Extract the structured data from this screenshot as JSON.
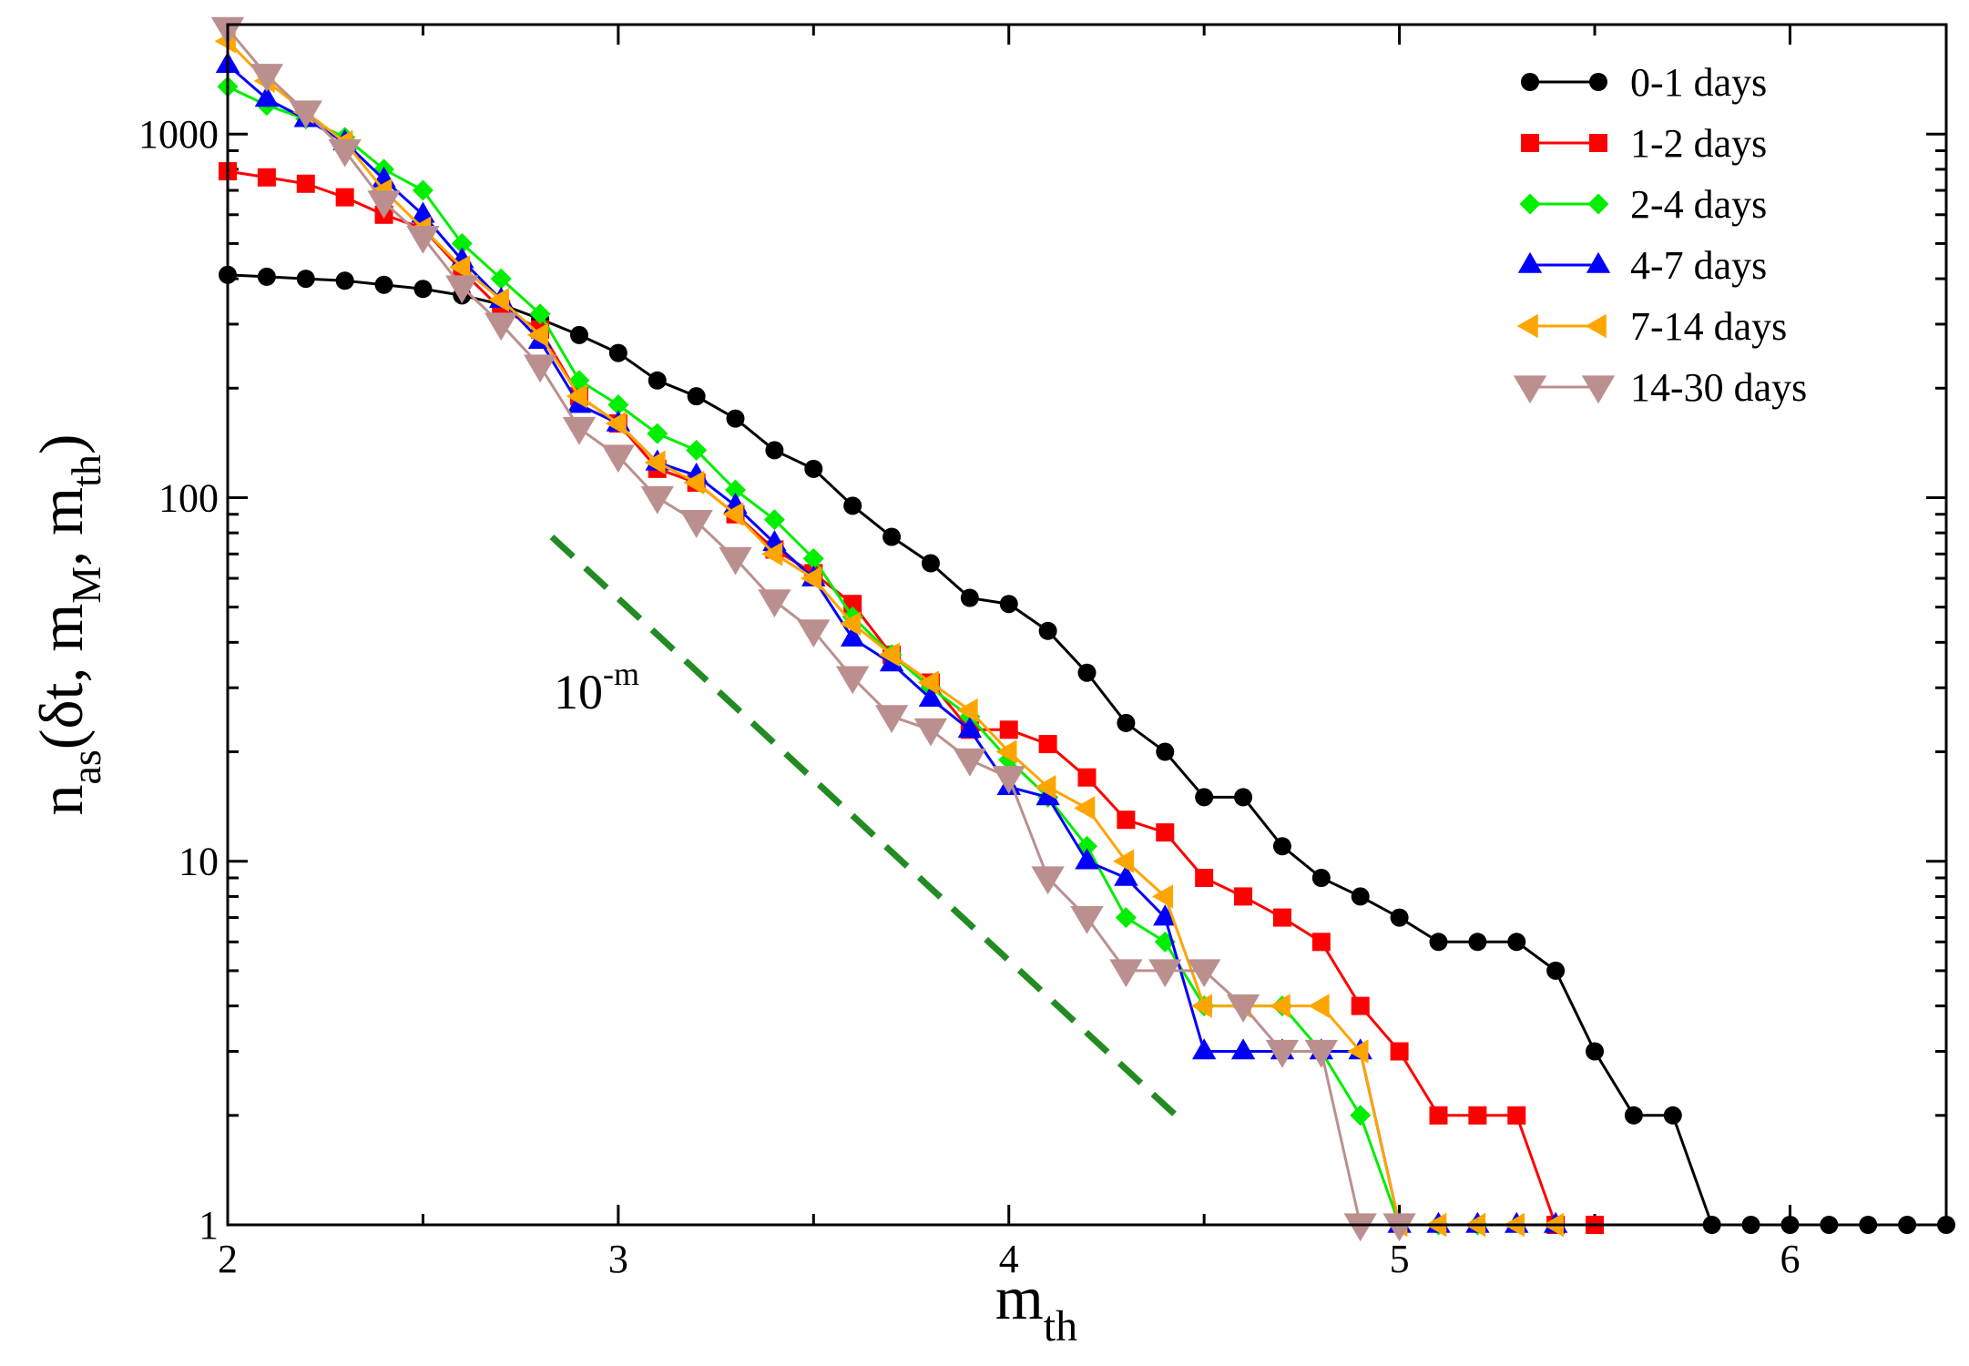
{
  "chart_data": {
    "type": "line",
    "xscale": "linear",
    "yscale": "log",
    "xlim": [
      2,
      6.4
    ],
    "ylim": [
      1,
      2000
    ],
    "xlabel": "m",
    "xlabel_sub": "th",
    "ylabel_parts": [
      {
        "text": "n",
        "role": "normal"
      },
      {
        "text": "as",
        "role": "sub"
      },
      {
        "text": "(δt, m",
        "role": "normal"
      },
      {
        "text": "M",
        "role": "sub"
      },
      {
        "text": ", m",
        "role": "normal"
      },
      {
        "text": "th",
        "role": "sub"
      },
      {
        "text": ")",
        "role": "normal"
      }
    ],
    "xticks": [
      2,
      3,
      4,
      5,
      6
    ],
    "xtick_labels": [
      "2",
      "3",
      "4",
      "5",
      "6"
    ],
    "yticks": [
      1,
      10,
      100,
      1000
    ],
    "ytick_labels": [
      "1",
      "10",
      "100",
      "1000"
    ],
    "legend_position": "top-right",
    "series": [
      {
        "name": "0-1 days",
        "color": "#000000",
        "marker": "circle",
        "x": [
          2.0,
          2.1,
          2.2,
          2.3,
          2.4,
          2.5,
          2.6,
          2.7,
          2.8,
          2.9,
          3.0,
          3.1,
          3.2,
          3.3,
          3.4,
          3.5,
          3.6,
          3.7,
          3.8,
          3.9,
          4.0,
          4.1,
          4.2,
          4.3,
          4.4,
          4.5,
          4.6,
          4.7,
          4.8,
          4.9,
          5.0,
          5.1,
          5.2,
          5.3,
          5.4,
          5.5,
          5.6,
          5.7,
          5.8,
          5.9,
          6.0,
          6.1,
          6.2,
          6.3,
          6.4
        ],
        "y": [
          410,
          405,
          400,
          395,
          385,
          375,
          360,
          340,
          310,
          280,
          250,
          210,
          190,
          165,
          135,
          120,
          95,
          78,
          66,
          53,
          51,
          43,
          33,
          24,
          20,
          15,
          15,
          11,
          9,
          8,
          7,
          6,
          6,
          6,
          5,
          3,
          2,
          2,
          1,
          1,
          1,
          1,
          1,
          1,
          1
        ]
      },
      {
        "name": "1-2 days",
        "color": "#ff0000",
        "marker": "square",
        "x": [
          2.0,
          2.1,
          2.2,
          2.3,
          2.4,
          2.5,
          2.6,
          2.7,
          2.8,
          2.9,
          3.0,
          3.1,
          3.2,
          3.3,
          3.4,
          3.5,
          3.6,
          3.7,
          3.8,
          3.9,
          4.0,
          4.1,
          4.2,
          4.3,
          4.4,
          4.5,
          4.6,
          4.7,
          4.8,
          4.9,
          5.0,
          5.1,
          5.2,
          5.3,
          5.4,
          5.5
        ],
        "y": [
          790,
          760,
          730,
          670,
          600,
          550,
          420,
          330,
          290,
          190,
          160,
          120,
          110,
          90,
          72,
          62,
          51,
          37,
          31,
          23,
          23,
          21,
          17,
          13,
          12,
          9,
          8,
          7,
          6,
          4,
          3,
          2,
          2,
          2,
          1,
          1
        ]
      },
      {
        "name": "2-4 days",
        "color": "#00ee00",
        "marker": "diamond",
        "x": [
          2.0,
          2.1,
          2.2,
          2.3,
          2.4,
          2.5,
          2.6,
          2.7,
          2.8,
          2.9,
          3.0,
          3.1,
          3.2,
          3.3,
          3.4,
          3.5,
          3.6,
          3.7,
          3.8,
          3.9,
          4.0,
          4.1,
          4.2,
          4.3,
          4.4,
          4.5,
          4.6,
          4.7,
          4.8,
          4.9,
          5.0,
          5.1,
          5.2
        ],
        "y": [
          1350,
          1200,
          1100,
          980,
          800,
          700,
          500,
          400,
          320,
          210,
          180,
          150,
          135,
          105,
          87,
          68,
          47,
          37,
          30,
          25,
          19,
          15,
          11,
          7,
          6,
          4,
          4,
          4,
          3,
          2,
          1,
          1,
          1
        ]
      },
      {
        "name": "4-7 days",
        "color": "#0000ff",
        "marker": "triangle-up",
        "x": [
          2.0,
          2.1,
          2.2,
          2.3,
          2.4,
          2.5,
          2.6,
          2.7,
          2.8,
          2.9,
          3.0,
          3.1,
          3.2,
          3.3,
          3.4,
          3.5,
          3.6,
          3.7,
          3.8,
          3.9,
          4.0,
          4.1,
          4.2,
          4.3,
          4.4,
          4.5,
          4.6,
          4.7,
          4.8,
          4.9,
          5.0,
          5.1,
          5.2,
          5.3,
          5.4
        ],
        "y": [
          1550,
          1250,
          1100,
          950,
          750,
          600,
          450,
          350,
          270,
          180,
          160,
          125,
          115,
          95,
          75,
          60,
          41,
          35,
          28,
          23,
          16,
          15,
          10,
          9,
          7,
          3,
          3,
          3,
          3,
          3,
          1,
          1,
          1,
          1,
          1
        ]
      },
      {
        "name": "7-14 days",
        "color": "#ffa500",
        "marker": "triangle-left",
        "x": [
          2.0,
          2.1,
          2.2,
          2.3,
          2.4,
          2.5,
          2.6,
          2.7,
          2.8,
          2.9,
          3.0,
          3.1,
          3.2,
          3.3,
          3.4,
          3.5,
          3.6,
          3.7,
          3.8,
          3.9,
          4.0,
          4.1,
          4.2,
          4.3,
          4.4,
          4.5,
          4.6,
          4.7,
          4.8,
          4.9,
          5.0,
          5.1,
          5.2,
          5.3,
          5.4
        ],
        "y": [
          1800,
          1400,
          1150,
          950,
          700,
          550,
          430,
          350,
          280,
          190,
          160,
          125,
          110,
          90,
          70,
          60,
          45,
          37,
          31,
          26,
          20,
          16,
          14,
          10,
          8,
          4,
          4,
          4,
          4,
          3,
          1,
          1,
          1,
          1,
          1
        ]
      },
      {
        "name": "14-30 days",
        "color": "#bc8f8f",
        "marker": "triangle-down",
        "x": [
          2.0,
          2.1,
          2.2,
          2.3,
          2.4,
          2.5,
          2.6,
          2.7,
          2.8,
          2.9,
          3.0,
          3.1,
          3.2,
          3.3,
          3.4,
          3.5,
          3.6,
          3.7,
          3.8,
          3.9,
          4.0,
          4.1,
          4.2,
          4.3,
          4.4,
          4.5,
          4.6,
          4.7,
          4.8,
          4.9,
          5.0
        ],
        "y": [
          1950,
          1450,
          1150,
          900,
          650,
          520,
          380,
          300,
          230,
          155,
          130,
          100,
          86,
          68,
          52,
          43,
          32,
          25,
          23,
          19,
          17,
          9,
          7,
          5,
          5,
          5,
          4,
          3,
          3,
          1,
          1
        ]
      }
    ],
    "reference_line": {
      "label": "10",
      "label_sup": "-m",
      "color": "#228b22",
      "x": [
        2.83,
        4.45
      ],
      "y": [
        78,
        1.9
      ]
    }
  }
}
